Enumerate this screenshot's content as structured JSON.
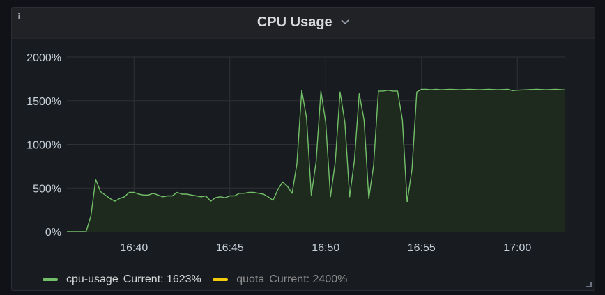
{
  "panel": {
    "title": "CPU Usage",
    "info_icon": "info-icon",
    "title_menu_icon": "chevron-down-icon"
  },
  "colors": {
    "background": "#111217",
    "panel": "#181b1f",
    "grid": "#2f3136",
    "axis_text": "#c7d0d9",
    "series_line": "#73bf69",
    "series_fill": "#1e2a1d",
    "quota": "#f2cc0c"
  },
  "legend": [
    {
      "name": "cpu-usage",
      "current": "Current: 1623%",
      "color": "#73bf69",
      "faded": false
    },
    {
      "name": "quota",
      "current": "Current: 2400%",
      "color": "#f2cc0c",
      "faded": true
    }
  ],
  "chart_data": {
    "type": "area",
    "ylim": [
      0,
      2000
    ],
    "y_ticks": [
      0,
      500,
      1000,
      1500,
      2000
    ],
    "y_tick_labels": [
      "0%",
      "500%",
      "1000%",
      "1500%",
      "2000%"
    ],
    "x_range": [
      "16:36:30",
      "17:02:30"
    ],
    "x_ticks": [
      "16:40",
      "16:45",
      "16:50",
      "16:55",
      "17:00"
    ],
    "grid": true,
    "legend_position": "bottom-left",
    "series": [
      {
        "name": "cpu-usage",
        "color": "#73bf69",
        "fill": true,
        "points": [
          [
            "16:36:30",
            0
          ],
          [
            "16:37:00",
            0
          ],
          [
            "16:37:30",
            0
          ],
          [
            "16:37:45",
            180
          ],
          [
            "16:38:00",
            600
          ],
          [
            "16:38:15",
            460
          ],
          [
            "16:38:30",
            420
          ],
          [
            "16:38:45",
            380
          ],
          [
            "16:39:00",
            350
          ],
          [
            "16:39:15",
            380
          ],
          [
            "16:39:30",
            400
          ],
          [
            "16:39:45",
            450
          ],
          [
            "16:40:00",
            450
          ],
          [
            "16:40:15",
            430
          ],
          [
            "16:40:30",
            420
          ],
          [
            "16:40:45",
            420
          ],
          [
            "16:41:00",
            440
          ],
          [
            "16:41:15",
            420
          ],
          [
            "16:41:30",
            400
          ],
          [
            "16:41:45",
            410
          ],
          [
            "16:42:00",
            410
          ],
          [
            "16:42:15",
            450
          ],
          [
            "16:42:30",
            430
          ],
          [
            "16:42:45",
            430
          ],
          [
            "16:43:00",
            420
          ],
          [
            "16:43:15",
            410
          ],
          [
            "16:43:30",
            400
          ],
          [
            "16:43:45",
            410
          ],
          [
            "16:44:00",
            350
          ],
          [
            "16:44:15",
            390
          ],
          [
            "16:44:30",
            400
          ],
          [
            "16:44:45",
            390
          ],
          [
            "16:45:00",
            410
          ],
          [
            "16:45:15",
            410
          ],
          [
            "16:45:30",
            440
          ],
          [
            "16:45:45",
            440
          ],
          [
            "16:46:00",
            450
          ],
          [
            "16:46:15",
            450
          ],
          [
            "16:46:30",
            440
          ],
          [
            "16:46:45",
            430
          ],
          [
            "16:47:00",
            400
          ],
          [
            "16:47:15",
            360
          ],
          [
            "16:47:30",
            480
          ],
          [
            "16:47:45",
            570
          ],
          [
            "16:48:00",
            520
          ],
          [
            "16:48:15",
            440
          ],
          [
            "16:48:30",
            780
          ],
          [
            "16:48:45",
            1620
          ],
          [
            "16:49:00",
            1300
          ],
          [
            "16:49:15",
            420
          ],
          [
            "16:49:30",
            800
          ],
          [
            "16:49:45",
            1610
          ],
          [
            "16:50:00",
            1250
          ],
          [
            "16:50:15",
            400
          ],
          [
            "16:50:30",
            800
          ],
          [
            "16:50:45",
            1600
          ],
          [
            "16:51:00",
            1250
          ],
          [
            "16:51:15",
            400
          ],
          [
            "16:51:30",
            820
          ],
          [
            "16:51:45",
            1580
          ],
          [
            "16:52:00",
            1280
          ],
          [
            "16:52:15",
            380
          ],
          [
            "16:52:30",
            760
          ],
          [
            "16:52:45",
            1610
          ],
          [
            "16:53:00",
            1610
          ],
          [
            "16:53:15",
            1620
          ],
          [
            "16:53:30",
            1610
          ],
          [
            "16:53:45",
            1610
          ],
          [
            "16:54:00",
            1280
          ],
          [
            "16:54:15",
            340
          ],
          [
            "16:54:30",
            710
          ],
          [
            "16:54:45",
            1600
          ],
          [
            "16:55:00",
            1630
          ],
          [
            "16:55:15",
            1630
          ],
          [
            "16:55:30",
            1625
          ],
          [
            "16:55:45",
            1630
          ],
          [
            "16:56:00",
            1625
          ],
          [
            "16:56:30",
            1630
          ],
          [
            "16:57:00",
            1625
          ],
          [
            "16:57:30",
            1630
          ],
          [
            "16:58:00",
            1625
          ],
          [
            "16:58:30",
            1630
          ],
          [
            "16:59:00",
            1625
          ],
          [
            "16:59:30",
            1630
          ],
          [
            "16:59:45",
            1615
          ],
          [
            "17:00:00",
            1620
          ],
          [
            "17:00:30",
            1625
          ],
          [
            "17:01:00",
            1630
          ],
          [
            "17:01:30",
            1625
          ],
          [
            "17:02:00",
            1630
          ],
          [
            "17:02:30",
            1623
          ]
        ]
      }
    ]
  }
}
